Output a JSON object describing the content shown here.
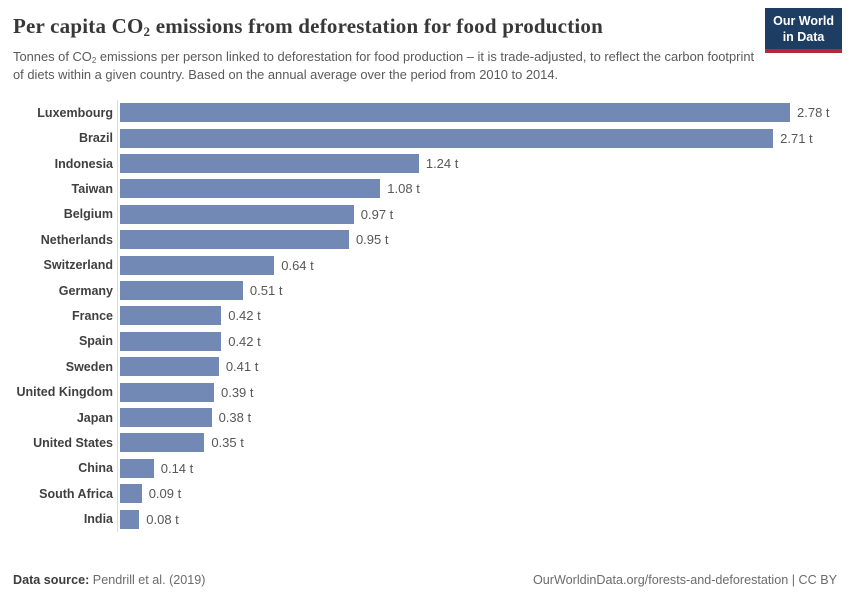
{
  "header": {
    "title_prefix": "Per capita CO",
    "title_sub": "2",
    "title_suffix": " emissions from deforestation for food production",
    "subtitle_prefix": "Tonnes of CO",
    "subtitle_sub": "2",
    "subtitle_suffix": " emissions per person linked to deforestation for food production – it is trade-adjusted, to reflect the carbon footprint of diets within a given country. Based on the annual average over the period from 2010 to 2014."
  },
  "logo": {
    "line1": "Our World",
    "line2": "in Data",
    "bg_color": "#1d3d63",
    "stripe_color": "#b02a3a"
  },
  "chart_data": {
    "type": "bar",
    "orientation": "horizontal",
    "title": "Per capita CO₂ emissions from deforestation for food production",
    "categories": [
      "Luxembourg",
      "Brazil",
      "Indonesia",
      "Taiwan",
      "Belgium",
      "Netherlands",
      "Switzerland",
      "Germany",
      "France",
      "Spain",
      "Sweden",
      "United Kingdom",
      "Japan",
      "United States",
      "China",
      "South Africa",
      "India"
    ],
    "values": [
      2.78,
      2.71,
      1.24,
      1.08,
      0.97,
      0.95,
      0.64,
      0.51,
      0.42,
      0.42,
      0.41,
      0.39,
      0.38,
      0.35,
      0.14,
      0.09,
      0.08
    ],
    "value_labels": [
      "2.78 t",
      "2.71 t",
      "1.24 t",
      "1.08 t",
      "0.97 t",
      "0.95 t",
      "0.64 t",
      "0.51 t",
      "0.42 t",
      "0.42 t",
      "0.41 t",
      "0.39 t",
      "0.38 t",
      "0.35 t",
      "0.14 t",
      "0.09 t",
      "0.08 t"
    ],
    "unit": "t",
    "xlim": [
      0,
      2.78
    ],
    "bar_color": "#7289b5",
    "axis_line_color": "#dcdcdc",
    "grid": false,
    "legend": false
  },
  "footer": {
    "source_label": "Data source:",
    "source_value": " Pendrill et al. (2019)",
    "link_text": "OurWorldinData.org/forests-and-deforestation | CC BY"
  }
}
